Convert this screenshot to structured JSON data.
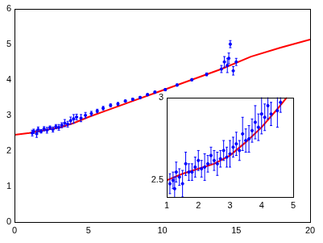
{
  "chart_data": [
    {
      "type": "scatter",
      "xlim": [
        0,
        20
      ],
      "xticks": [
        0,
        5,
        10,
        15,
        20
      ],
      "ylim": [
        0,
        6
      ],
      "yticks": [
        0,
        1,
        2,
        3,
        4,
        5,
        6
      ],
      "grid": false,
      "series": [
        {
          "type": "scatter",
          "color": "#0000ff",
          "marker": "circle",
          "x": [
            1.2,
            1.3,
            1.5,
            1.6,
            1.8,
            2.0,
            2.2,
            2.4,
            2.6,
            2.8,
            3.0,
            3.2,
            3.4,
            3.6,
            3.8,
            4.0,
            4.2,
            4.5,
            4.8,
            5.2,
            5.6,
            6.0,
            6.5,
            7.0,
            7.5,
            8.0,
            8.5,
            9.0,
            9.5,
            10.2,
            11.0,
            12.0,
            13.0,
            14.0,
            14.2,
            14.4,
            14.5,
            14.6,
            14.8,
            15.0
          ],
          "values": [
            2.5,
            2.55,
            2.48,
            2.6,
            2.55,
            2.62,
            2.58,
            2.65,
            2.6,
            2.68,
            2.66,
            2.72,
            2.78,
            2.75,
            2.85,
            2.9,
            2.95,
            2.92,
            3.0,
            3.05,
            3.12,
            3.2,
            3.28,
            3.32,
            3.4,
            3.45,
            3.5,
            3.58,
            3.65,
            3.72,
            3.85,
            4.0,
            4.15,
            4.3,
            4.5,
            4.4,
            4.6,
            5.0,
            4.25,
            4.5
          ],
          "errors": [
            0.08,
            0.06,
            0.1,
            0.07,
            0.05,
            0.06,
            0.08,
            0.05,
            0.07,
            0.06,
            0.08,
            0.07,
            0.1,
            0.08,
            0.1,
            0.12,
            0.08,
            0.1,
            0.08,
            0.06,
            0.05,
            0.05,
            0.04,
            0.04,
            0.03,
            0.03,
            0.03,
            0.03,
            0.03,
            0.03,
            0.03,
            0.03,
            0.04,
            0.1,
            0.15,
            0.2,
            0.15,
            0.1,
            0.12,
            0.1
          ]
        },
        {
          "type": "line",
          "color": "#ff0000",
          "line_style": "solid",
          "x": [
            0,
            1,
            2,
            3,
            4,
            5,
            6,
            8,
            10,
            12,
            14,
            16,
            18,
            20
          ],
          "values": [
            2.45,
            2.5,
            2.58,
            2.65,
            2.78,
            2.95,
            3.1,
            3.4,
            3.7,
            4.0,
            4.3,
            4.65,
            4.9,
            5.13
          ]
        }
      ]
    },
    {
      "type": "scatter",
      "xlim": [
        1,
        5
      ],
      "xticks": [
        1,
        2,
        3,
        4,
        5
      ],
      "ylim": [
        2.4,
        3.0
      ],
      "yticks": [
        2.5,
        3
      ],
      "grid": false,
      "series": [
        {
          "type": "scatter",
          "color": "#0000ff",
          "marker": "circle",
          "x": [
            1.1,
            1.2,
            1.25,
            1.3,
            1.4,
            1.5,
            1.6,
            1.7,
            1.8,
            1.9,
            2.0,
            2.1,
            2.2,
            2.3,
            2.4,
            2.5,
            2.6,
            2.7,
            2.8,
            2.9,
            3.0,
            3.1,
            3.2,
            3.3,
            3.4,
            3.5,
            3.6,
            3.7,
            3.8,
            3.9,
            4.0,
            4.1,
            4.2,
            4.3,
            4.5,
            4.6
          ],
          "values": [
            2.48,
            2.5,
            2.45,
            2.55,
            2.52,
            2.48,
            2.6,
            2.55,
            2.55,
            2.58,
            2.62,
            2.57,
            2.58,
            2.6,
            2.65,
            2.62,
            2.6,
            2.63,
            2.68,
            2.64,
            2.66,
            2.7,
            2.72,
            2.68,
            2.78,
            2.74,
            2.75,
            2.8,
            2.85,
            2.82,
            2.9,
            2.88,
            2.95,
            2.9,
            2.92,
            2.97
          ],
          "errors": [
            0.06,
            0.05,
            0.07,
            0.06,
            0.05,
            0.08,
            0.07,
            0.05,
            0.05,
            0.06,
            0.06,
            0.05,
            0.08,
            0.05,
            0.05,
            0.06,
            0.07,
            0.05,
            0.06,
            0.06,
            0.08,
            0.06,
            0.07,
            0.06,
            0.1,
            0.07,
            0.08,
            0.07,
            0.1,
            0.08,
            0.12,
            0.08,
            0.08,
            0.07,
            0.1,
            0.06
          ]
        },
        {
          "type": "line",
          "color": "#ff0000",
          "line_style": "solid",
          "x": [
            1,
            1.5,
            2,
            2.5,
            3,
            3.5,
            4,
            4.5,
            4.8
          ],
          "values": [
            2.5,
            2.54,
            2.57,
            2.6,
            2.65,
            2.73,
            2.82,
            2.93,
            3.0
          ]
        }
      ]
    }
  ]
}
